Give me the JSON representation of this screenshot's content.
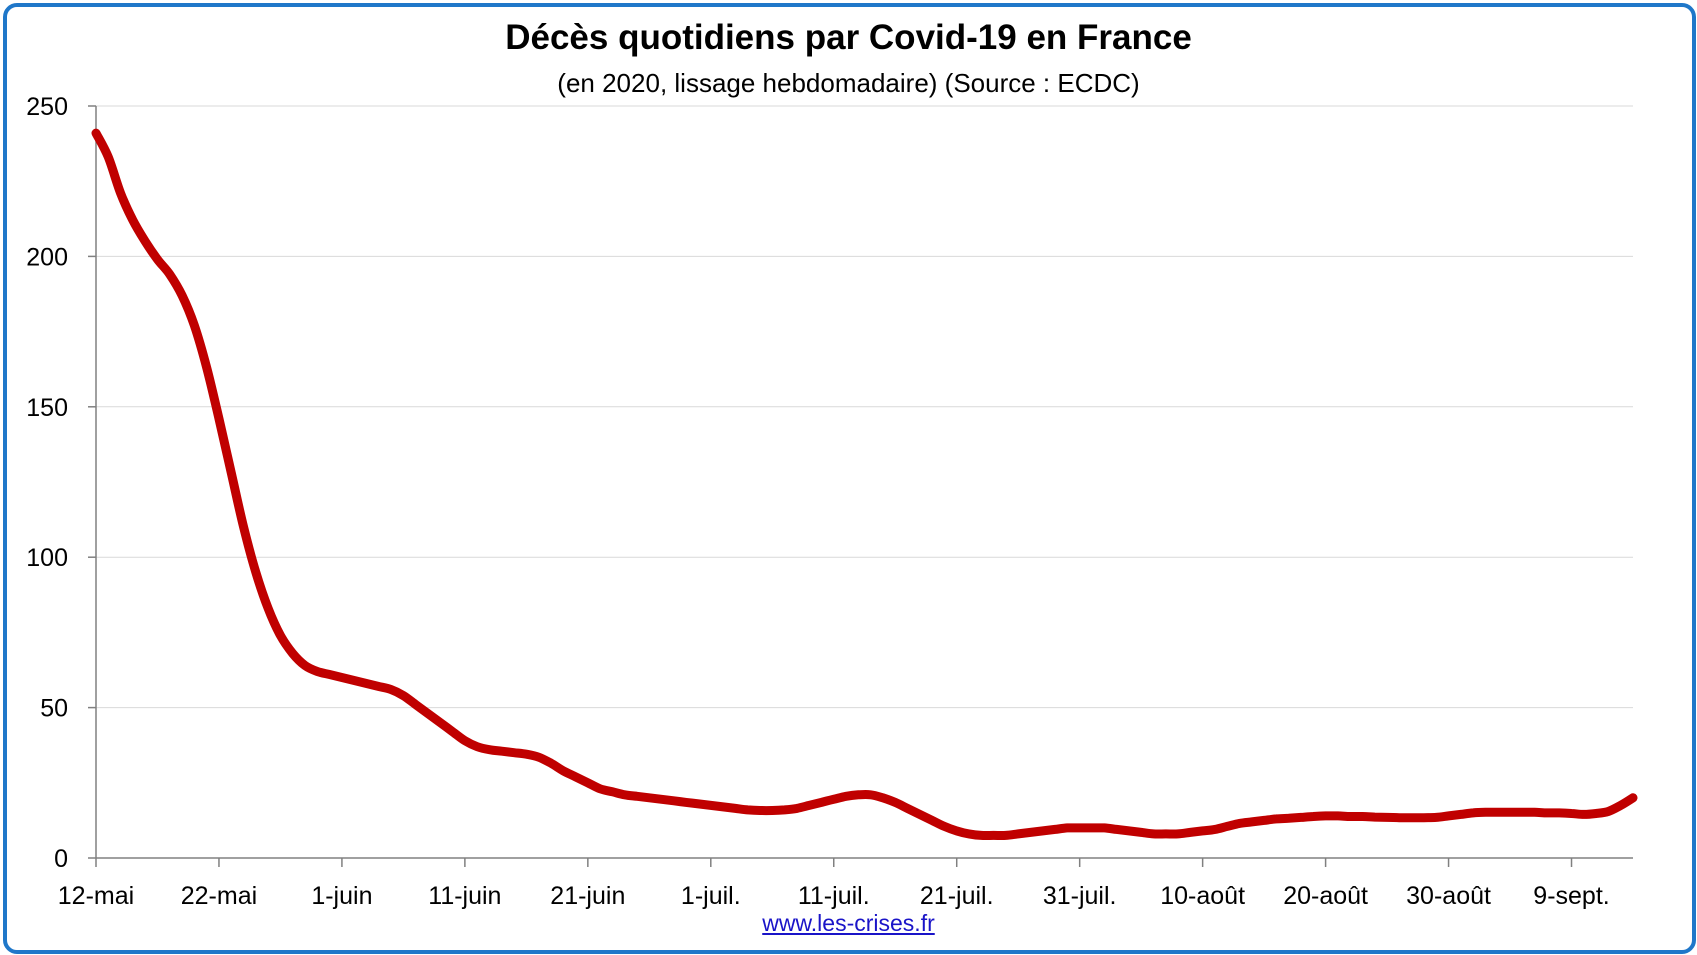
{
  "chart_data": {
    "type": "line",
    "title": "Décès quotidiens par Covid-19 en France",
    "subtitle": "(en 2020, lissage hebdomadaire) (Source : ECDC)",
    "source": "www.les-crises.fr",
    "ylim": [
      0,
      250
    ],
    "yticks": [
      "0",
      "50",
      "100",
      "150",
      "200",
      "250"
    ],
    "xticks": [
      "12-mai",
      "22-mai",
      "1-juin",
      "11-juin",
      "21-juin",
      "1-juil.",
      "11-juil.",
      "21-juil.",
      "31-juil.",
      "10-août",
      "20-août",
      "30-août",
      "9-sept."
    ],
    "grid": true,
    "x_start": "12-mai",
    "x_days_total": 125,
    "series": [
      {
        "color": "#c00000",
        "x": [
          0,
          1,
          2,
          3,
          4,
          5,
          6,
          7,
          8,
          9,
          10,
          11,
          12,
          13,
          14,
          15,
          16,
          17,
          18,
          19,
          20,
          21,
          22,
          23,
          24,
          25,
          26,
          27,
          28,
          29,
          30,
          31,
          32,
          33,
          34,
          35,
          36,
          37,
          38,
          39,
          40,
          41,
          42,
          43,
          44,
          45,
          46,
          47,
          48,
          49,
          50,
          51,
          52,
          53,
          54,
          55,
          56,
          57,
          58,
          59,
          60,
          61,
          62,
          63,
          64,
          65,
          66,
          67,
          68,
          69,
          70,
          71,
          72,
          73,
          74,
          75,
          76,
          77,
          78,
          79,
          80,
          81,
          82,
          83,
          84,
          85,
          86,
          87,
          88,
          89,
          90,
          91,
          92,
          93,
          94,
          95,
          96,
          97,
          98,
          99,
          100,
          101,
          102,
          103,
          104,
          105,
          106,
          107,
          108,
          109,
          110,
          111,
          112,
          113,
          114,
          115,
          116,
          117,
          118,
          119,
          120,
          121,
          122,
          123,
          124,
          125
        ],
        "y": [
          241,
          233,
          221,
          212,
          205,
          199,
          194,
          187,
          177,
          163,
          146,
          128,
          110,
          95,
          83,
          74,
          68,
          64,
          62,
          61,
          60,
          59,
          58,
          57,
          56,
          54,
          51,
          48,
          45,
          42,
          39,
          37,
          36,
          35.5,
          35,
          34.5,
          33.5,
          31.5,
          29,
          27,
          25,
          23,
          22,
          21,
          20.5,
          20,
          19.5,
          19,
          18.5,
          18,
          17.5,
          17,
          16.5,
          16,
          15.8,
          15.8,
          16,
          16.5,
          17.5,
          18.5,
          19.5,
          20.5,
          21,
          21,
          20,
          18.5,
          16.5,
          14.5,
          12.5,
          10.5,
          9,
          8,
          7.5,
          7.5,
          7.5,
          8,
          8.5,
          9,
          9.5,
          10,
          10,
          10,
          10,
          9.5,
          9,
          8.5,
          8,
          8,
          8,
          8.5,
          9,
          9.5,
          10.5,
          11.5,
          12,
          12.5,
          13,
          13.2,
          13.5,
          13.8,
          14,
          14,
          13.8,
          13.8,
          13.6,
          13.5,
          13.4,
          13.4,
          13.4,
          13.5,
          14,
          14.5,
          15,
          15.2,
          15.2,
          15.2,
          15.2,
          15.2,
          15,
          15,
          14.8,
          14.5,
          14.8,
          15.5,
          17.5,
          20
        ]
      }
    ]
  }
}
